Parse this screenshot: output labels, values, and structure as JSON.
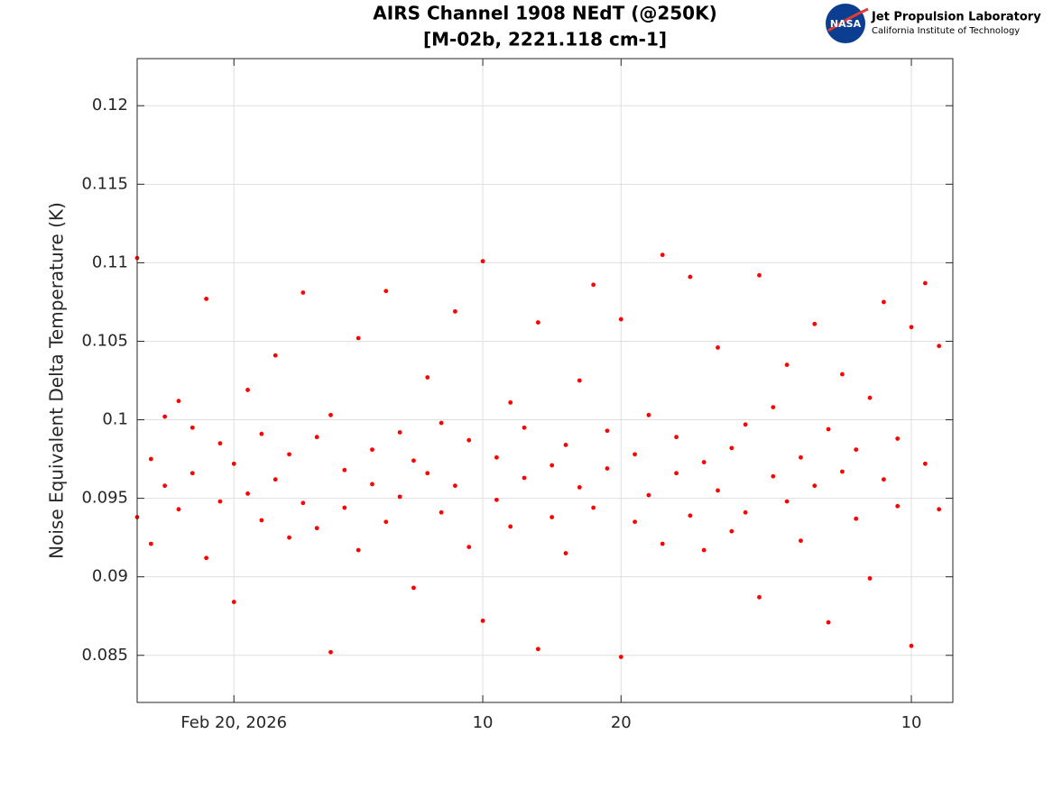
{
  "logo": {
    "badge": "NASA",
    "name": "Jet Propulsion Laboratory",
    "subtitle": "California Institute of Technology"
  },
  "chart_data": {
    "type": "scatter",
    "title": [
      "AIRS Channel 1908 NEdT (@250K)",
      "[M-02b, 2221.118 cm-1]"
    ],
    "ylabel": "Noise Equivalent Delta Temperature (K)",
    "xlim": [
      "2026-02-13",
      "2026-04-13"
    ],
    "xticks": [
      {
        "value": "2026-02-20",
        "label": "Feb 20, 2026"
      },
      {
        "value": "2026-03-10",
        "label": "10"
      },
      {
        "value": "2026-03-20",
        "label": "20"
      },
      {
        "value": "2026-04-10",
        "label": "10"
      }
    ],
    "ylim": [
      0.082,
      0.123
    ],
    "yticks": [
      0.085,
      0.09,
      0.095,
      0.1,
      0.105,
      0.11,
      0.115,
      0.12
    ],
    "grid": true,
    "series": [
      {
        "name": "NEdT",
        "color": "#ff0000",
        "x": [
          "2026-02-13",
          "2026-02-13",
          "2026-02-14",
          "2026-02-14",
          "2026-02-15",
          "2026-02-15",
          "2026-02-16",
          "2026-02-16",
          "2026-02-17",
          "2026-02-17",
          "2026-02-18",
          "2026-02-18",
          "2026-02-19",
          "2026-02-19",
          "2026-02-20",
          "2026-02-20",
          "2026-02-21",
          "2026-02-21",
          "2026-02-22",
          "2026-02-22",
          "2026-02-23",
          "2026-02-23",
          "2026-02-24",
          "2026-02-24",
          "2026-02-25",
          "2026-02-25",
          "2026-02-26",
          "2026-02-26",
          "2026-02-27",
          "2026-02-27",
          "2026-02-28",
          "2026-02-28",
          "2026-03-01",
          "2026-03-01",
          "2026-03-02",
          "2026-03-02",
          "2026-03-03",
          "2026-03-03",
          "2026-03-04",
          "2026-03-04",
          "2026-03-05",
          "2026-03-05",
          "2026-03-06",
          "2026-03-06",
          "2026-03-07",
          "2026-03-07",
          "2026-03-08",
          "2026-03-08",
          "2026-03-09",
          "2026-03-09",
          "2026-03-10",
          "2026-03-10",
          "2026-03-11",
          "2026-03-11",
          "2026-03-12",
          "2026-03-12",
          "2026-03-13",
          "2026-03-13",
          "2026-03-14",
          "2026-03-14",
          "2026-03-15",
          "2026-03-15",
          "2026-03-16",
          "2026-03-16",
          "2026-03-17",
          "2026-03-17",
          "2026-03-18",
          "2026-03-18",
          "2026-03-19",
          "2026-03-19",
          "2026-03-20",
          "2026-03-20",
          "2026-03-21",
          "2026-03-21",
          "2026-03-22",
          "2026-03-22",
          "2026-03-23",
          "2026-03-23",
          "2026-03-24",
          "2026-03-24",
          "2026-03-25",
          "2026-03-25",
          "2026-03-26",
          "2026-03-26",
          "2026-03-27",
          "2026-03-27",
          "2026-03-28",
          "2026-03-28",
          "2026-03-29",
          "2026-03-29",
          "2026-03-30",
          "2026-03-30",
          "2026-03-31",
          "2026-03-31",
          "2026-04-01",
          "2026-04-01",
          "2026-04-02",
          "2026-04-02",
          "2026-04-03",
          "2026-04-03",
          "2026-04-04",
          "2026-04-04",
          "2026-04-05",
          "2026-04-05",
          "2026-04-06",
          "2026-04-06",
          "2026-04-07",
          "2026-04-07",
          "2026-04-08",
          "2026-04-08",
          "2026-04-09",
          "2026-04-09",
          "2026-04-10",
          "2026-04-10",
          "2026-04-11",
          "2026-04-11",
          "2026-04-12",
          "2026-04-12"
        ],
        "values": [
          0.1103,
          0.0938,
          0.0975,
          0.0921,
          0.1002,
          0.0958,
          0.0943,
          0.1012,
          0.0966,
          0.0995,
          0.1077,
          0.0912,
          0.0985,
          0.0948,
          0.0972,
          0.0884,
          0.1019,
          0.0953,
          0.0936,
          0.0991,
          0.0962,
          0.1041,
          0.0925,
          0.0978,
          0.1081,
          0.0947,
          0.0989,
          0.0931,
          0.1003,
          0.0852,
          0.0968,
          0.0944,
          0.1052,
          0.0917,
          0.0981,
          0.0959,
          0.1082,
          0.0935,
          0.0992,
          0.0951,
          0.0974,
          0.0893,
          0.1027,
          0.0966,
          0.0941,
          0.0998,
          0.0958,
          0.1069,
          0.0919,
          0.0987,
          0.1101,
          0.0872,
          0.0976,
          0.0949,
          0.1011,
          0.0932,
          0.0963,
          0.0995,
          0.0854,
          0.1062,
          0.0971,
          0.0938,
          0.0984,
          0.0915,
          0.1025,
          0.0957,
          0.1086,
          0.0944,
          0.0969,
          0.0993,
          0.0849,
          0.1064,
          0.0978,
          0.0935,
          0.1003,
          0.0952,
          0.1105,
          0.0921,
          0.0966,
          0.0989,
          0.0939,
          0.1091,
          0.0973,
          0.0917,
          0.1046,
          0.0955,
          0.0982,
          0.0929,
          0.0997,
          0.0941,
          0.1092,
          0.0887,
          0.0964,
          0.1008,
          0.0948,
          0.1035,
          0.0923,
          0.0976,
          0.1061,
          0.0958,
          0.0871,
          0.0994,
          0.0967,
          0.1029,
          0.0937,
          0.0981,
          0.0899,
          0.1014,
          0.0962,
          0.1075,
          0.0945,
          0.0988,
          0.0856,
          0.1059,
          0.0972,
          0.1087,
          0.0943,
          0.1047
        ]
      }
    ]
  }
}
